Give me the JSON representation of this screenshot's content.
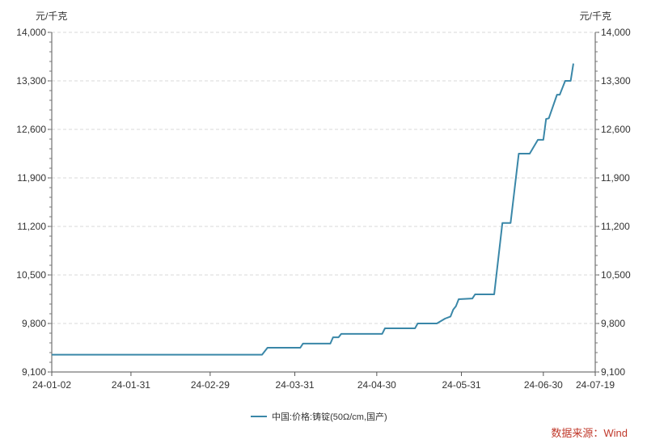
{
  "chart_data": {
    "type": "line",
    "title": "",
    "unit_left": "元/千克",
    "unit_right": "元/千克",
    "ylim": [
      9100,
      14000
    ],
    "yticks": [
      9100,
      9800,
      10500,
      11200,
      11900,
      12600,
      13300,
      14000
    ],
    "ytick_labels": [
      "9,100",
      "9,800",
      "10,500",
      "11,200",
      "11,900",
      "12,600",
      "13,300",
      "14,000"
    ],
    "xlim": [
      "2024-01-02",
      "2024-07-19"
    ],
    "xticks": [
      "2024-01-02",
      "2024-01-31",
      "2024-02-29",
      "2024-03-31",
      "2024-04-30",
      "2024-05-31",
      "2024-06-30",
      "2024-07-19"
    ],
    "xtick_labels": [
      "24-01-02",
      "24-01-31",
      "24-02-29",
      "24-03-31",
      "24-04-30",
      "24-05-31",
      "24-06-30",
      "24-07-19"
    ],
    "grid": true,
    "legend": "bottom-center",
    "line_color": "#3a87a8",
    "series": [
      {
        "name": "中国:价格:铸锭(50Ω/cm,国产)",
        "points": [
          [
            "2024-01-02",
            9350
          ],
          [
            "2024-03-19",
            9350
          ],
          [
            "2024-03-21",
            9450
          ],
          [
            "2024-04-02",
            9450
          ],
          [
            "2024-04-03",
            9510
          ],
          [
            "2024-04-13",
            9510
          ],
          [
            "2024-04-14",
            9600
          ],
          [
            "2024-04-16",
            9600
          ],
          [
            "2024-04-17",
            9650
          ],
          [
            "2024-05-02",
            9650
          ],
          [
            "2024-05-03",
            9730
          ],
          [
            "2024-05-14",
            9730
          ],
          [
            "2024-05-15",
            9800
          ],
          [
            "2024-05-22",
            9800
          ],
          [
            "2024-05-25",
            9870
          ],
          [
            "2024-05-27",
            9900
          ],
          [
            "2024-05-28",
            10000
          ],
          [
            "2024-05-29",
            10050
          ],
          [
            "2024-05-30",
            10150
          ],
          [
            "2024-06-04",
            10160
          ],
          [
            "2024-06-05",
            10220
          ],
          [
            "2024-06-12",
            10220
          ],
          [
            "2024-06-15",
            11250
          ],
          [
            "2024-06-18",
            11250
          ],
          [
            "2024-06-21",
            12250
          ],
          [
            "2024-06-25",
            12250
          ],
          [
            "2024-06-28",
            12450
          ],
          [
            "2024-06-30",
            12450
          ],
          [
            "2024-07-01",
            12750
          ],
          [
            "2024-07-02",
            12760
          ],
          [
            "2024-07-05",
            13100
          ],
          [
            "2024-07-06",
            13100
          ],
          [
            "2024-07-07",
            13200
          ],
          [
            "2024-07-08",
            13300
          ],
          [
            "2024-07-10",
            13300
          ],
          [
            "2024-07-11",
            13550
          ]
        ]
      }
    ]
  },
  "source": "数据来源：Wind"
}
